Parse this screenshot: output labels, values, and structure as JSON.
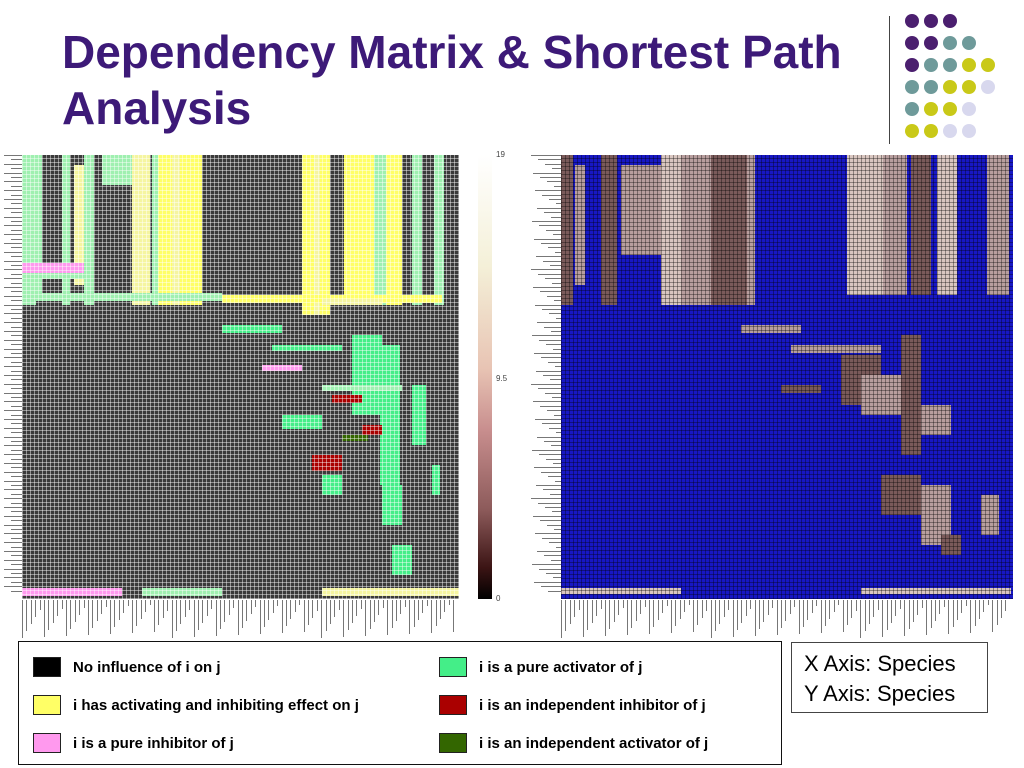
{
  "slide": {
    "title": "Dependency Matrix & Shortest Path Analysis"
  },
  "colors": {
    "title": "#3d1a78",
    "dot_purple": "#4b1f6f",
    "dot_teal": "#6e9a9a",
    "dot_olive": "#c9c918",
    "dot_lavender": "#d8d8ee",
    "no_influence": "#000000",
    "mixed_effect": "#ffff66",
    "pure_inhibitor": "#ff99ee",
    "pure_activator": "#44ee88",
    "independent_inhibitor": "#aa0000",
    "independent_activator": "#336600",
    "shortest_path_background": "#1717c4"
  },
  "dependency_matrix": {
    "colorbar_ticks": [
      "19",
      "9.5",
      "0"
    ]
  },
  "legend": {
    "items": [
      {
        "label": "No influence of i on j",
        "color": "#000000"
      },
      {
        "label": "i has activating and inhibiting effect on j",
        "color": "#ffff66"
      },
      {
        "label": "i is a pure inhibitor of j",
        "color": "#ff99ee"
      },
      {
        "label": "i is a pure activator of j",
        "color": "#44ee88"
      },
      {
        "label": "i is an independent  inhibitor of  j",
        "color": "#aa0000"
      },
      {
        "label": "i is an independent activator of  j",
        "color": "#336600"
      }
    ]
  },
  "axis_info": {
    "x_axis": "X Axis: Species",
    "y_axis": "Y Axis: Species"
  }
}
